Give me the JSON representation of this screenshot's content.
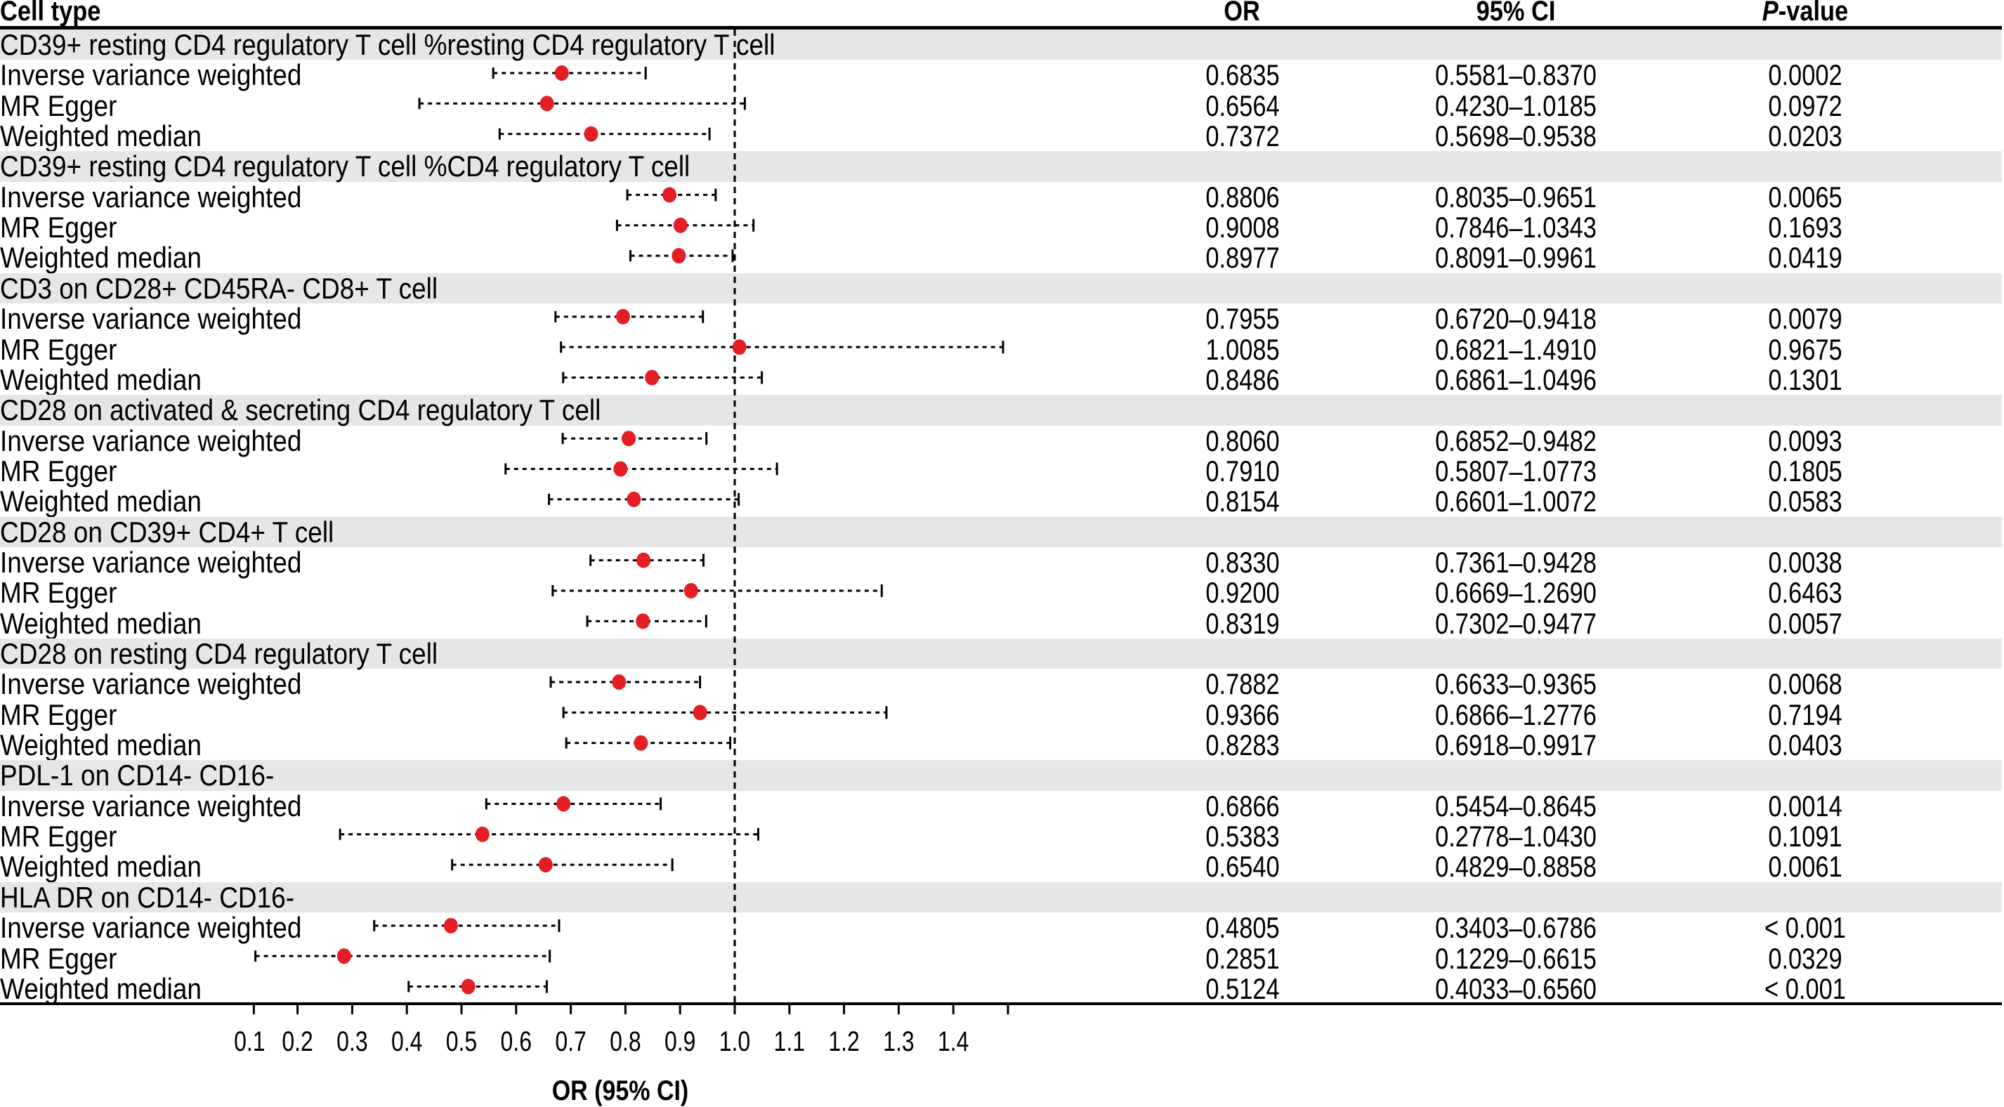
{
  "chart_data": {
    "type": "forest",
    "title": "",
    "xlabel": "OR (95% CI)",
    "reference_line": 1.0,
    "xlim": [
      0.12,
      1.5
    ],
    "x_ticks": [
      "0.1",
      "0.2",
      "0.3",
      "0.4",
      "0.5",
      "0.6",
      "0.7",
      "0.8",
      "0.9",
      "1.0",
      "1.1",
      "1.2",
      "1.3",
      "1.4"
    ],
    "columns": {
      "cell_type": "Cell type",
      "or": "OR",
      "ci": "95% CI",
      "p_prefix": "P",
      "p_suffix": "-value"
    },
    "marker_color": "#e31e24",
    "band_color": "#e5e6e8",
    "groups": [
      {
        "name": "CD39+ resting CD4 regulatory T cell %resting CD4 regulatory T cell",
        "rows": [
          {
            "method": "Inverse variance weighted",
            "or": 0.6835,
            "lo": 0.5581,
            "hi": 0.837,
            "or_text": "0.6835",
            "ci_text": "0.5581–0.8370",
            "p": "0.0002"
          },
          {
            "method": "MR Egger",
            "or": 0.6564,
            "lo": 0.423,
            "hi": 1.0185,
            "or_text": "0.6564",
            "ci_text": "0.4230–1.0185",
            "p": "0.0972"
          },
          {
            "method": "Weighted median",
            "or": 0.7372,
            "lo": 0.5698,
            "hi": 0.9538,
            "or_text": "0.7372",
            "ci_text": "0.5698–0.9538",
            "p": "0.0203"
          }
        ]
      },
      {
        "name": "CD39+ resting CD4 regulatory T cell %CD4 regulatory T cell",
        "rows": [
          {
            "method": "Inverse variance weighted",
            "or": 0.8806,
            "lo": 0.8035,
            "hi": 0.9651,
            "or_text": "0.8806",
            "ci_text": "0.8035–0.9651",
            "p": "0.0065"
          },
          {
            "method": "MR Egger",
            "or": 0.9008,
            "lo": 0.7846,
            "hi": 1.0343,
            "or_text": "0.9008",
            "ci_text": "0.7846–1.0343",
            "p": "0.1693"
          },
          {
            "method": "Weighted median",
            "or": 0.8977,
            "lo": 0.8091,
            "hi": 0.9961,
            "or_text": "0.8977",
            "ci_text": "0.8091–0.9961",
            "p": "0.0419"
          }
        ]
      },
      {
        "name": "CD3 on CD28+ CD45RA- CD8+ T cell",
        "rows": [
          {
            "method": "Inverse variance weighted",
            "or": 0.7955,
            "lo": 0.672,
            "hi": 0.9418,
            "or_text": "0.7955",
            "ci_text": "0.6720–0.9418",
            "p": "0.0079"
          },
          {
            "method": "MR Egger",
            "or": 1.0085,
            "lo": 0.6821,
            "hi": 1.491,
            "or_text": "1.0085",
            "ci_text": "0.6821–1.4910",
            "p": "0.9675"
          },
          {
            "method": "Weighted median",
            "or": 0.8486,
            "lo": 0.6861,
            "hi": 1.0496,
            "or_text": "0.8486",
            "ci_text": "0.6861–1.0496",
            "p": "0.1301"
          }
        ]
      },
      {
        "name": "CD28 on activated & secreting CD4 regulatory T cell",
        "rows": [
          {
            "method": "Inverse variance weighted",
            "or": 0.806,
            "lo": 0.6852,
            "hi": 0.9482,
            "or_text": "0.8060",
            "ci_text": "0.6852–0.9482",
            "p": "0.0093"
          },
          {
            "method": "MR Egger",
            "or": 0.791,
            "lo": 0.5807,
            "hi": 1.0773,
            "or_text": "0.7910",
            "ci_text": "0.5807–1.0773",
            "p": "0.1805"
          },
          {
            "method": "Weighted median",
            "or": 0.8154,
            "lo": 0.6601,
            "hi": 1.0072,
            "or_text": "0.8154",
            "ci_text": "0.6601–1.0072",
            "p": "0.0583"
          }
        ]
      },
      {
        "name": "CD28 on CD39+ CD4+ T cell",
        "rows": [
          {
            "method": "Inverse variance weighted",
            "or": 0.833,
            "lo": 0.7361,
            "hi": 0.9428,
            "or_text": "0.8330",
            "ci_text": "0.7361–0.9428",
            "p": "0.0038"
          },
          {
            "method": "MR Egger",
            "or": 0.92,
            "lo": 0.6669,
            "hi": 1.269,
            "or_text": "0.9200",
            "ci_text": "0.6669–1.2690",
            "p": "0.6463"
          },
          {
            "method": "Weighted median",
            "or": 0.8319,
            "lo": 0.7302,
            "hi": 0.9477,
            "or_text": "0.8319",
            "ci_text": "0.7302–0.9477",
            "p": "0.0057"
          }
        ]
      },
      {
        "name": "CD28 on resting CD4 regulatory T cell",
        "rows": [
          {
            "method": "Inverse variance weighted",
            "or": 0.7882,
            "lo": 0.6633,
            "hi": 0.9365,
            "or_text": "0.7882",
            "ci_text": "0.6633–0.9365",
            "p": "0.0068"
          },
          {
            "method": "MR Egger",
            "or": 0.9366,
            "lo": 0.6866,
            "hi": 1.2776,
            "or_text": "0.9366",
            "ci_text": "0.6866–1.2776",
            "p": "0.7194"
          },
          {
            "method": "Weighted median",
            "or": 0.8283,
            "lo": 0.6918,
            "hi": 0.9917,
            "or_text": "0.8283",
            "ci_text": "0.6918–0.9917",
            "p": "0.0403"
          }
        ]
      },
      {
        "name": "PDL-1 on CD14- CD16-",
        "rows": [
          {
            "method": "Inverse variance weighted",
            "or": 0.6866,
            "lo": 0.5454,
            "hi": 0.8645,
            "or_text": "0.6866",
            "ci_text": "0.5454–0.8645",
            "p": "0.0014"
          },
          {
            "method": "MR Egger",
            "or": 0.5383,
            "lo": 0.2778,
            "hi": 1.043,
            "or_text": "0.5383",
            "ci_text": "0.2778–1.0430",
            "p": "0.1091"
          },
          {
            "method": "Weighted median",
            "or": 0.654,
            "lo": 0.4829,
            "hi": 0.8858,
            "or_text": "0.6540",
            "ci_text": "0.4829–0.8858",
            "p": "0.0061"
          }
        ]
      },
      {
        "name": "HLA DR on CD14- CD16-",
        "rows": [
          {
            "method": "Inverse variance weighted",
            "or": 0.4805,
            "lo": 0.3403,
            "hi": 0.6786,
            "or_text": "0.4805",
            "ci_text": "0.3403–0.6786",
            "p": "< 0.001"
          },
          {
            "method": "MR Egger",
            "or": 0.2851,
            "lo": 0.1229,
            "hi": 0.6615,
            "or_text": "0.2851",
            "ci_text": "0.1229–0.6615",
            "p": "0.0329"
          },
          {
            "method": "Weighted median",
            "or": 0.5124,
            "lo": 0.4033,
            "hi": 0.656,
            "or_text": "0.5124",
            "ci_text": "0.4033–0.6560",
            "p": "< 0.001"
          }
        ]
      }
    ]
  }
}
